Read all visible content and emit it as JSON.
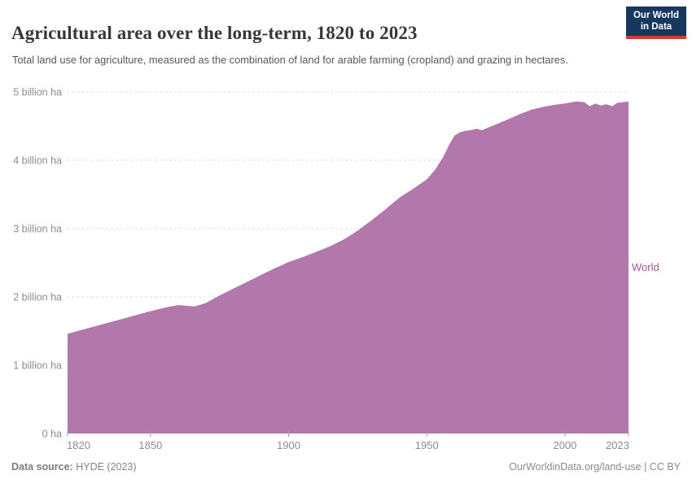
{
  "header": {
    "title": "Agricultural area over the long-term, 1820 to 2023",
    "subtitle": "Total land use for agriculture, measured as the combination of land for arable farming (cropland) and grazing in hectares.",
    "logo": {
      "line1": "Our World",
      "line2": "in Data",
      "bg_color": "#18375f",
      "accent_color": "#d73a34"
    }
  },
  "chart_data": {
    "type": "area",
    "title": "Agricultural area over the long-term, 1820 to 2023",
    "xlabel": "",
    "ylabel": "",
    "unit": "billion ha",
    "xlim": [
      1820,
      2023
    ],
    "ylim": [
      0,
      5
    ],
    "grid": "dashed-horizontal",
    "legend_position": "right-of-area-end",
    "x_ticks": [
      1820,
      1850,
      1900,
      1950,
      2000,
      2023
    ],
    "y_ticks": [
      {
        "value": 0,
        "label": "0 ha"
      },
      {
        "value": 1,
        "label": "1 billion ha"
      },
      {
        "value": 2,
        "label": "2 billion ha"
      },
      {
        "value": 3,
        "label": "3 billion ha"
      },
      {
        "value": 4,
        "label": "4 billion ha"
      },
      {
        "value": 5,
        "label": "5 billion ha"
      }
    ],
    "series": [
      {
        "name": "World",
        "fill_color": "#b277ab",
        "label_color": "#a2559c",
        "x": [
          1820,
          1830,
          1840,
          1850,
          1855,
          1860,
          1863,
          1866,
          1870,
          1875,
          1880,
          1885,
          1890,
          1895,
          1900,
          1905,
          1910,
          1915,
          1920,
          1925,
          1930,
          1935,
          1940,
          1945,
          1950,
          1953,
          1956,
          1958,
          1960,
          1962,
          1964,
          1966,
          1968,
          1970,
          1973,
          1976,
          1980,
          1984,
          1988,
          1992,
          1996,
          2000,
          2004,
          2007,
          2009,
          2011,
          2013,
          2015,
          2017,
          2019,
          2021,
          2023
        ],
        "values": [
          1.46,
          1.57,
          1.68,
          1.79,
          1.84,
          1.88,
          1.87,
          1.86,
          1.91,
          2.02,
          2.12,
          2.22,
          2.32,
          2.42,
          2.51,
          2.58,
          2.66,
          2.74,
          2.84,
          2.97,
          3.12,
          3.28,
          3.45,
          3.58,
          3.72,
          3.86,
          4.05,
          4.22,
          4.36,
          4.41,
          4.43,
          4.44,
          4.46,
          4.44,
          4.49,
          4.54,
          4.61,
          4.68,
          4.74,
          4.78,
          4.81,
          4.83,
          4.86,
          4.85,
          4.79,
          4.83,
          4.8,
          4.82,
          4.79,
          4.84,
          4.85,
          4.86
        ]
      }
    ],
    "axis_colors": {
      "tick_label": "#8c8c8c",
      "gridline": "#dedede",
      "tick_mark": "#a0a0a0"
    }
  },
  "footer": {
    "source_label": "Data source:",
    "source_value": " HYDE (2023)",
    "attribution": "OurWorldinData.org/land-use | CC BY"
  }
}
